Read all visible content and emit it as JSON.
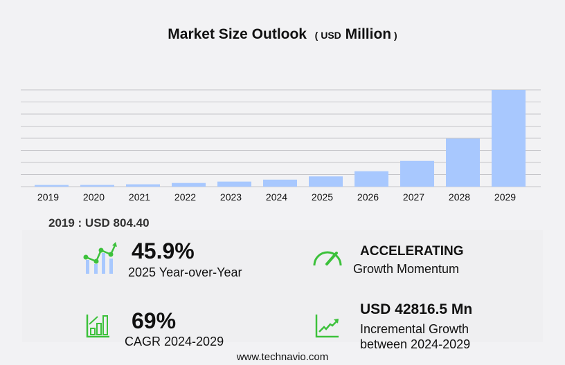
{
  "title": {
    "main": "Market Size Outlook",
    "unit_open": "( ",
    "unit": "USD",
    "unit_main": "Million",
    "unit_close": " )"
  },
  "base_label": "2019 : USD  804.40",
  "stats": {
    "yoy_value": "45.9%",
    "yoy_label": "2025 Year-over-Year",
    "momentum_value": "ACCELERATING",
    "momentum_label": "Growth Momentum",
    "cagr_value": "69%",
    "cagr_label": "CAGR 2024-2029",
    "incr_value": "USD 42816.5 Mn",
    "incr_label1": "Incremental Growth",
    "incr_label2": "between 2024-2029"
  },
  "footer": "www.technavio.com",
  "colors": {
    "bar": "#a8c8fe",
    "accent": "#3cc13b",
    "grid": "#c4c4c8"
  },
  "chart_data": {
    "type": "bar",
    "title": "Market Size Outlook (USD Million)",
    "xlabel": "",
    "ylabel": "",
    "categories": [
      "2019",
      "2020",
      "2021",
      "2022",
      "2023",
      "2024",
      "2025",
      "2026",
      "2027",
      "2028",
      "2029"
    ],
    "values": [
      804.4,
      820,
      1120,
      1750,
      2420,
      3348,
      4885,
      7350,
      12280,
      22930,
      46164
    ],
    "ylim": [
      0,
      46164
    ],
    "grid": true,
    "legend": "none"
  }
}
